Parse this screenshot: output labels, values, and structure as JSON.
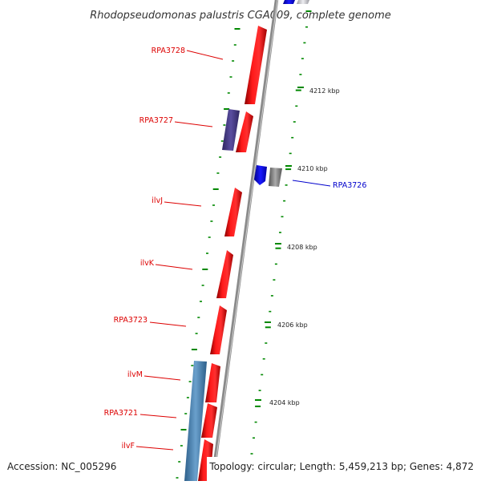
{
  "title": "Rhodopseudomonas palustris CGA009, complete genome",
  "footer": {
    "accession": "Accession: NC_005296",
    "topology": "Topology: circular; Length: 5,459,213 bp; Genes: 4,872"
  },
  "colors": {
    "forward_gene": "#ff0000",
    "reverse_gene": "#0000ff",
    "label_forward": "#dd0000",
    "label_reverse": "#0000cc",
    "backbone": "#888888",
    "tick": "#008800",
    "rrna_like": "#4a3d8a",
    "steelblue_feature": "#4682b4",
    "grey_feature": "#888888"
  },
  "kbp_labels": [
    "4212 kbp",
    "4210 kbp",
    "4208 kbp",
    "4206 kbp",
    "4204 kbp"
  ],
  "gene_labels": [
    "RPA3728",
    "RPA3727",
    "RPA3726",
    "ilvJ",
    "ilvK",
    "RPA3723",
    "ilvM",
    "RPA3721",
    "ilvF"
  ]
}
